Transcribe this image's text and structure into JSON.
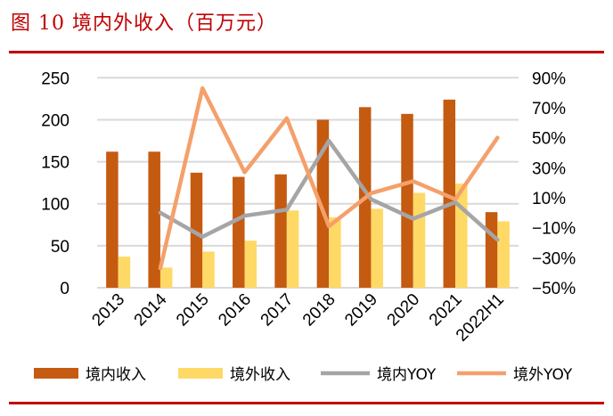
{
  "title": "图 10  境内外收入（百万元）",
  "colors": {
    "accent": "#c00000",
    "domestic": "#c55a11",
    "foreign": "#ffd966",
    "domestic_yoy": "#a5a5a5",
    "foreign_yoy": "#f4a06b"
  },
  "chart_data": {
    "type": "bar+line",
    "title": "境内外收入（百万元）",
    "categories": [
      "2013",
      "2014",
      "2015",
      "2016",
      "2017",
      "2018",
      "2019",
      "2020",
      "2021",
      "2022H1"
    ],
    "series": [
      {
        "name": "境内收入",
        "type": "bar",
        "axis": "left",
        "values": [
          162,
          162,
          137,
          132,
          135,
          200,
          215,
          207,
          224,
          90
        ]
      },
      {
        "name": "境外收入",
        "type": "bar",
        "axis": "left",
        "values": [
          37,
          24,
          43,
          56,
          92,
          84,
          94,
          113,
          124,
          79
        ]
      },
      {
        "name": "境内YOY",
        "type": "line",
        "axis": "right",
        "values": [
          null,
          0,
          -16,
          -2,
          2,
          48,
          9,
          -4,
          7,
          -18
        ]
      },
      {
        "name": "境外YOY",
        "type": "line",
        "axis": "right",
        "values": [
          null,
          -37,
          83,
          27,
          63,
          -9,
          13,
          21,
          9,
          50
        ]
      }
    ],
    "left_axis": {
      "ylim": [
        0,
        250
      ],
      "ticks": [
        "0",
        "50",
        "100",
        "150",
        "200",
        "250"
      ]
    },
    "right_axis": {
      "ylim": [
        -50,
        90
      ],
      "ticks": [
        "-50%",
        "-30%",
        "-10%",
        "10%",
        "30%",
        "50%",
        "70%",
        "90%"
      ]
    },
    "grid": true,
    "legend": "bottom"
  }
}
